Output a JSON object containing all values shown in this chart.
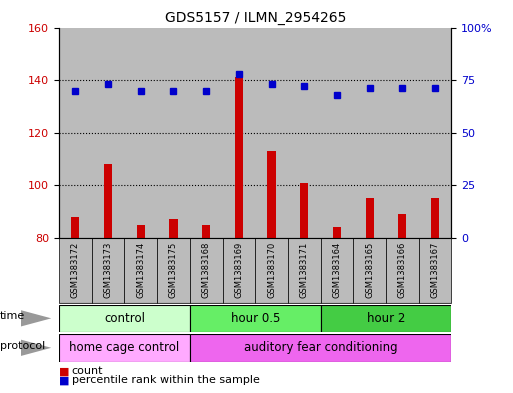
{
  "title": "GDS5157 / ILMN_2954265",
  "samples": [
    "GSM1383172",
    "GSM1383173",
    "GSM1383174",
    "GSM1383175",
    "GSM1383168",
    "GSM1383169",
    "GSM1383170",
    "GSM1383171",
    "GSM1383164",
    "GSM1383165",
    "GSM1383166",
    "GSM1383167"
  ],
  "counts": [
    88,
    108,
    85,
    87,
    85,
    141,
    113,
    101,
    84,
    95,
    89,
    95
  ],
  "percentiles": [
    70,
    73,
    70,
    70,
    70,
    78,
    73,
    72,
    68,
    71,
    71,
    71
  ],
  "ymin": 80,
  "ymax": 160,
  "y_left_ticks": [
    80,
    100,
    120,
    140,
    160
  ],
  "y_right_ticks": [
    0,
    25,
    50,
    75,
    100
  ],
  "time_groups": [
    {
      "label": "control",
      "start": 0,
      "end": 4,
      "color": "#ccffcc"
    },
    {
      "label": "hour 0.5",
      "start": 4,
      "end": 8,
      "color": "#66ee66"
    },
    {
      "label": "hour 2",
      "start": 8,
      "end": 12,
      "color": "#44cc44"
    }
  ],
  "protocol_groups": [
    {
      "label": "home cage control",
      "start": 0,
      "end": 4,
      "color": "#ffaaff"
    },
    {
      "label": "auditory fear conditioning",
      "start": 4,
      "end": 12,
      "color": "#ee66ee"
    }
  ],
  "bar_color": "#cc0000",
  "dot_color": "#0000cc",
  "tick_label_color_left": "#cc0000",
  "tick_label_color_right": "#0000cc",
  "sample_bg_color": "#bbbbbb",
  "legend_count_color": "#cc0000",
  "legend_pct_color": "#0000cc",
  "plot_bg_color": "#ffffff",
  "border_color": "#000000"
}
